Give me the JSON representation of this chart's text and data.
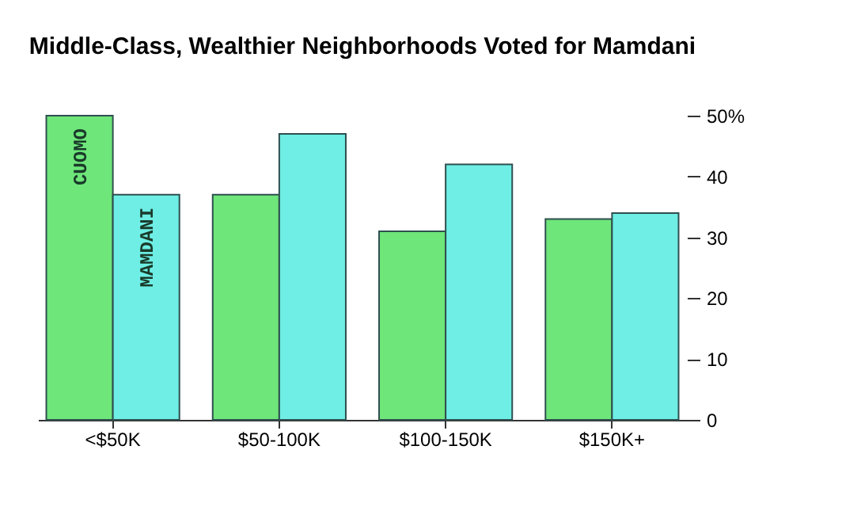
{
  "chart_data": {
    "type": "bar",
    "title": "Middle-Class, Wealthier Neighborhoods Voted for Mamdani",
    "categories": [
      "<$50K",
      "$50-100K",
      "$100-150K",
      "$150K+"
    ],
    "series": [
      {
        "name": "CUOMO",
        "color": "#6ee67a",
        "values": [
          50,
          37,
          31,
          33
        ]
      },
      {
        "name": "MAMDANI",
        "color": "#6eeee4",
        "values": [
          37,
          47,
          42,
          34
        ]
      }
    ],
    "ylim": [
      0,
      50
    ],
    "yticks": [
      0,
      10,
      20,
      30,
      40,
      {
        "value": 50,
        "label": "50%"
      }
    ],
    "grid": false,
    "legend": false
  }
}
